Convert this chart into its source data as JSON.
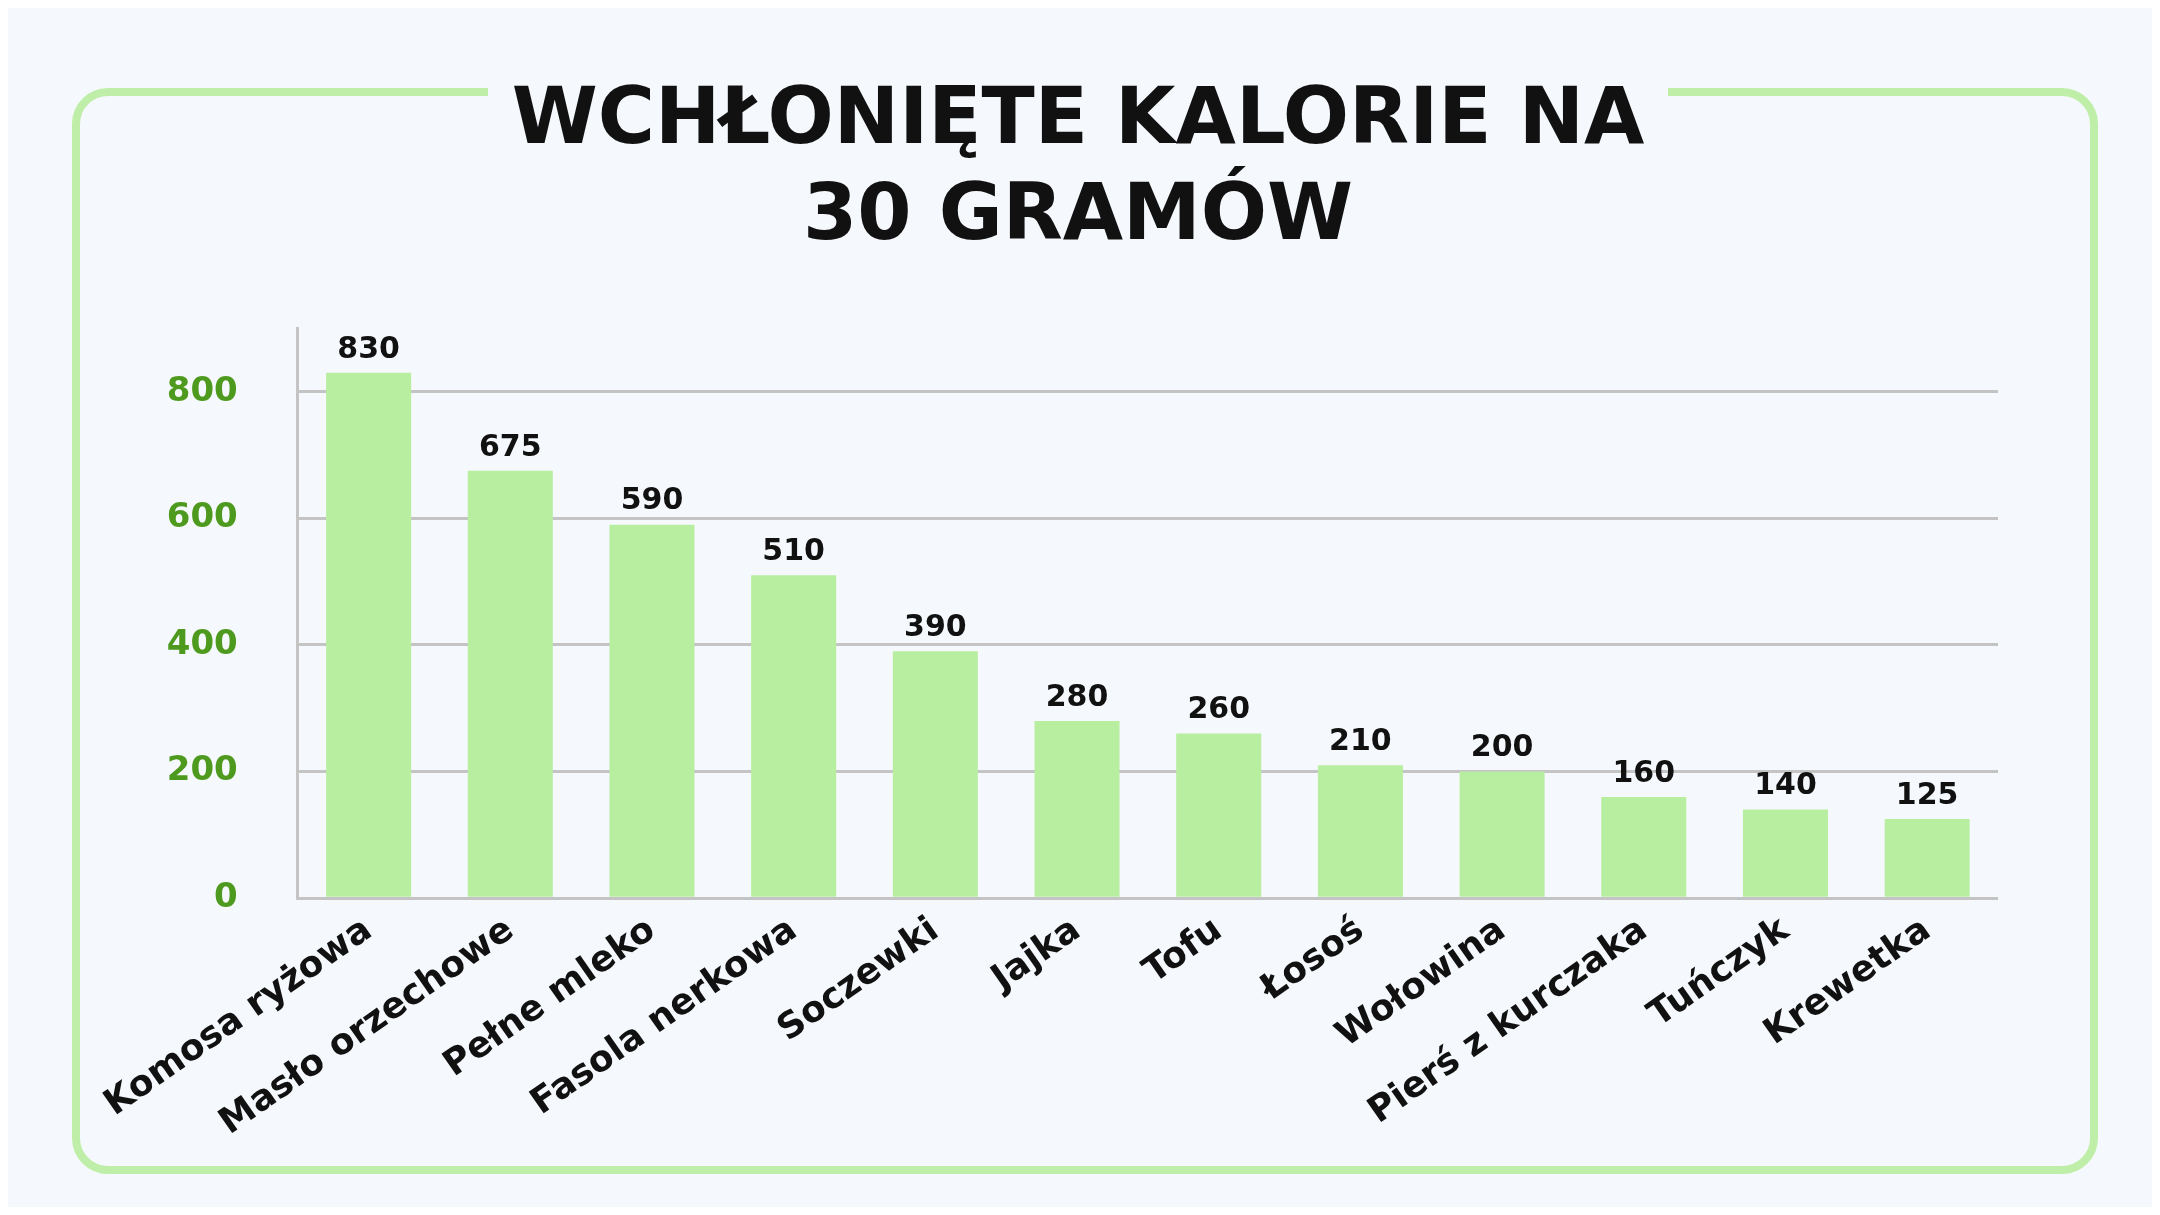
{
  "chart_data": {
    "type": "bar",
    "title": "WCHŁONIĘTE KALORIE NA 30 GRAMÓW",
    "categories": [
      "Komosa ryżowa",
      "Masło orzechowe",
      "Pełne mleko",
      "Fasola nerkowa",
      "Soczewki",
      "Jajka",
      "Tofu",
      "Łosoś",
      "Wołowina",
      "Pierś z kurczaka",
      "Tuńczyk",
      "Krewetka"
    ],
    "values": [
      830,
      675,
      590,
      510,
      390,
      280,
      260,
      210,
      200,
      160,
      140,
      125
    ],
    "color": "#b8eea0",
    "ylim": [
      0,
      900
    ],
    "yticks": [
      0,
      200,
      400,
      600,
      800
    ],
    "grid": "y",
    "data_labels": true
  }
}
